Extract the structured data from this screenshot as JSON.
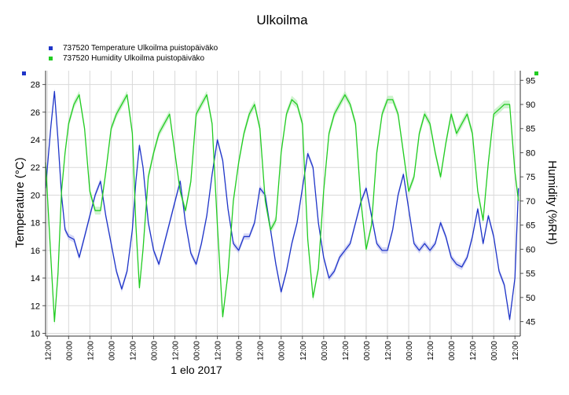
{
  "chart_data": {
    "type": "line",
    "title": "Ulkoilma",
    "legend_placement": "top-left",
    "grid": true,
    "x_tick_labels": [
      "12:00",
      "00:00",
      "12:00",
      "00:00",
      "12:00",
      "00:00",
      "12:00",
      "00:00",
      "12:00",
      "00:00",
      "12:00",
      "00:00",
      "12:00",
      "00:00",
      "12:00",
      "00:00",
      "12:00",
      "00:00",
      "12:00",
      "00:00",
      "12:00",
      "00:00",
      "12:00"
    ],
    "x_date_label": "1 elo 2017",
    "x_unit": "hours from first tick (tick every 12 h)",
    "x_range": [
      -1,
      267
    ],
    "left_axis": {
      "label": "Temperature (°C)",
      "range": [
        9.8,
        29
      ],
      "ticks": [
        10,
        12,
        14,
        16,
        18,
        20,
        22,
        24,
        26,
        28
      ]
    },
    "right_axis": {
      "label": "Humidity (%RH)",
      "range": [
        42,
        97
      ],
      "ticks": [
        45,
        50,
        55,
        60,
        65,
        70,
        75,
        80,
        85,
        90,
        95
      ]
    },
    "series": [
      {
        "name": "737520  Temperature Ulkoilma puistopäiväko",
        "axis": "left",
        "color": "#1f35c8",
        "band_color": "#b4b8f0",
        "x": [
          -1,
          2,
          4,
          6,
          8,
          10,
          12,
          15,
          18,
          21,
          24,
          27,
          30,
          33,
          36,
          39,
          42,
          45,
          48,
          50,
          52,
          54,
          57,
          60,
          63,
          66,
          69,
          72,
          75,
          78,
          81,
          84,
          87,
          90,
          93,
          96,
          99,
          102,
          105,
          108,
          111,
          114,
          117,
          120,
          123,
          126,
          129,
          132,
          135,
          138,
          141,
          144,
          147,
          150,
          153,
          156,
          159,
          162,
          165,
          168,
          171,
          174,
          177,
          180,
          183,
          186,
          189,
          192,
          195,
          198,
          201,
          204,
          207,
          210,
          213,
          216,
          219,
          222,
          225,
          228,
          231,
          234,
          237,
          240,
          243,
          246,
          249,
          252,
          255,
          258,
          261,
          264,
          266
        ],
        "values": [
          20.5,
          25.0,
          27.5,
          24.0,
          20.0,
          17.5,
          17.0,
          16.8,
          15.5,
          17.0,
          18.5,
          20.0,
          21.0,
          18.5,
          16.5,
          14.5,
          13.2,
          14.5,
          17.5,
          21.0,
          23.6,
          22.0,
          18.0,
          16.0,
          15.0,
          16.5,
          18.0,
          19.5,
          21.0,
          18.0,
          15.8,
          15.0,
          16.5,
          18.5,
          21.5,
          24.0,
          22.5,
          19.0,
          16.5,
          16.0,
          17.0,
          17.0,
          18.0,
          20.5,
          20.0,
          17.5,
          15.0,
          13.0,
          14.5,
          16.5,
          18.0,
          20.5,
          23.0,
          22.0,
          18.0,
          15.5,
          14.0,
          14.5,
          15.5,
          16.0,
          16.5,
          18.0,
          19.5,
          20.5,
          18.5,
          16.5,
          16.0,
          16.0,
          17.5,
          20.0,
          21.5,
          19.0,
          16.5,
          16.0,
          16.5,
          16.0,
          16.5,
          18.0,
          17.0,
          15.5,
          15.0,
          14.8,
          15.5,
          17.0,
          19.0,
          16.5,
          18.5,
          17.0,
          14.5,
          13.5,
          11.0,
          14.0,
          20.5
        ]
      },
      {
        "name": "737520  Humidity Ulkoilma puistopäiväko",
        "axis": "right",
        "color": "#22cc22",
        "band_color": "#a8eaa8",
        "x": [
          -1,
          2,
          4,
          6,
          8,
          10,
          12,
          15,
          18,
          21,
          24,
          27,
          30,
          33,
          36,
          39,
          42,
          45,
          48,
          50,
          52,
          54,
          57,
          60,
          63,
          66,
          69,
          72,
          75,
          78,
          81,
          84,
          87,
          90,
          93,
          96,
          99,
          102,
          105,
          108,
          111,
          114,
          117,
          120,
          123,
          126,
          129,
          132,
          135,
          138,
          141,
          144,
          147,
          150,
          153,
          156,
          159,
          162,
          165,
          168,
          171,
          174,
          177,
          180,
          183,
          186,
          189,
          192,
          195,
          198,
          201,
          204,
          207,
          210,
          213,
          216,
          219,
          222,
          225,
          228,
          231,
          234,
          237,
          240,
          243,
          246,
          249,
          252,
          255,
          258,
          261,
          264,
          266
        ],
        "values": [
          78,
          58,
          45,
          55,
          72,
          80,
          86,
          90,
          92,
          85,
          72,
          68,
          68,
          76,
          85,
          88,
          90,
          92,
          84,
          65,
          52,
          60,
          75,
          80,
          84,
          86,
          88,
          80,
          72,
          68,
          74,
          88,
          90,
          92,
          86,
          65,
          46,
          55,
          70,
          78,
          84,
          88,
          90,
          85,
          70,
          64,
          66,
          80,
          88,
          91,
          90,
          86,
          62,
          50,
          56,
          72,
          84,
          88,
          90,
          92,
          90,
          86,
          70,
          60,
          65,
          80,
          88,
          91,
          91,
          88,
          80,
          72,
          75,
          84,
          88,
          86,
          80,
          75,
          82,
          88,
          84,
          86,
          88,
          84,
          72,
          66,
          78,
          88,
          89,
          90,
          90,
          76,
          70
        ]
      }
    ]
  }
}
